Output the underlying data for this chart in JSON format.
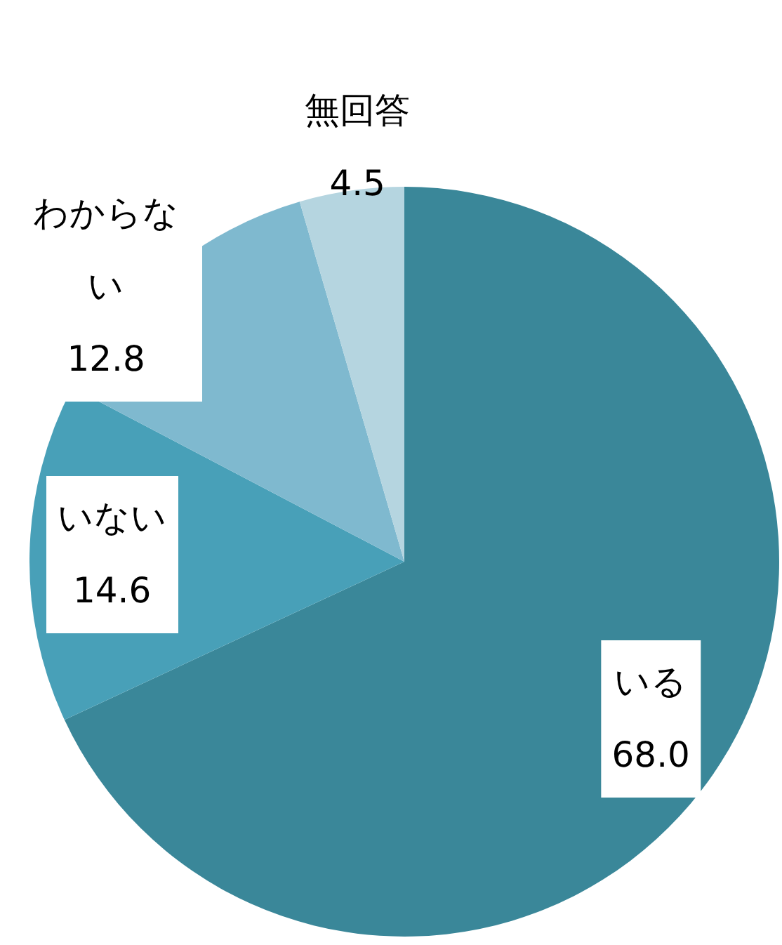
{
  "chart_data": {
    "type": "pie",
    "categories": [
      "いる",
      "いない",
      "わからない",
      "無回答"
    ],
    "values": [
      68.0,
      14.6,
      12.8,
      4.5
    ],
    "value_labels": [
      "68.0",
      "14.6",
      "12.8",
      "4.5"
    ],
    "colors": [
      "#3a8799",
      "#48a0b8",
      "#7fb9cf",
      "#b5d5e0"
    ]
  }
}
